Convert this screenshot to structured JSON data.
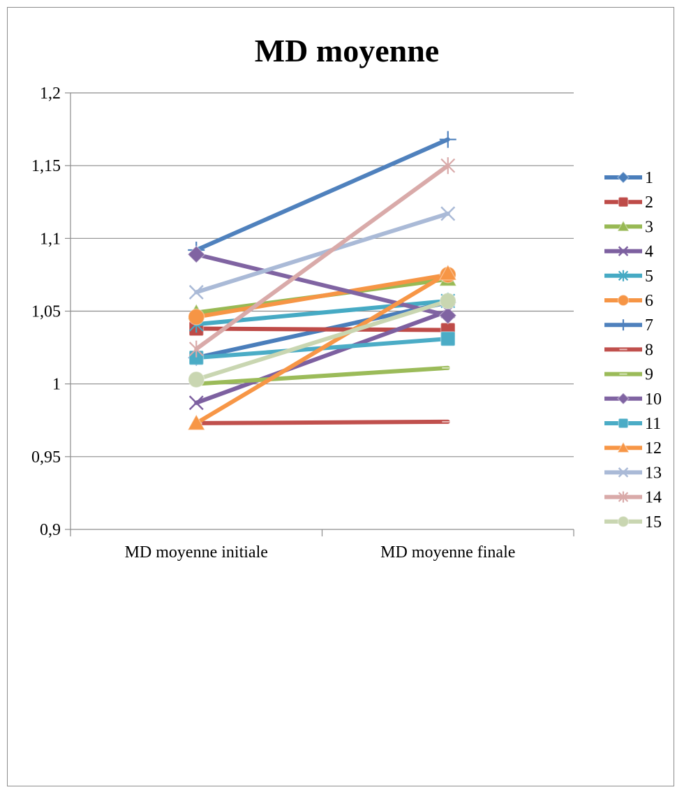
{
  "chart_data": {
    "type": "line",
    "title": "MD moyenne",
    "xlabel": "",
    "ylabel": "",
    "categories": [
      "MD moyenne initiale",
      "MD moyenne finale"
    ],
    "ylim": [
      0.9,
      1.2
    ],
    "yticks": [
      0.9,
      0.95,
      1.0,
      1.05,
      1.1,
      1.15,
      1.2
    ],
    "ytick_labels": [
      "0,9",
      "0,95",
      "1",
      "1,05",
      "1,1",
      "1,15",
      "1,2"
    ],
    "grid": true,
    "legend_position": "right",
    "series": [
      {
        "name": "1",
        "values": [
          1.018,
          1.056
        ],
        "color": "#4a7ebb",
        "marker": "diamond"
      },
      {
        "name": "2",
        "values": [
          1.038,
          1.037
        ],
        "color": "#be4b48",
        "marker": "square"
      },
      {
        "name": "3",
        "values": [
          1.049,
          1.072
        ],
        "color": "#98b954",
        "marker": "triangle"
      },
      {
        "name": "4",
        "values": [
          0.987,
          1.05
        ],
        "color": "#7d60a0",
        "marker": "x"
      },
      {
        "name": "5",
        "values": [
          1.041,
          1.057
        ],
        "color": "#46aac4",
        "marker": "star"
      },
      {
        "name": "6",
        "values": [
          1.046,
          1.075
        ],
        "color": "#f69545",
        "marker": "circle"
      },
      {
        "name": "7",
        "values": [
          1.092,
          1.168
        ],
        "color": "#4f81bd",
        "marker": "plus"
      },
      {
        "name": "8",
        "values": [
          0.973,
          0.974
        ],
        "color": "#c0504d",
        "marker": "dash"
      },
      {
        "name": "9",
        "values": [
          1.0,
          1.011
        ],
        "color": "#9bbb59",
        "marker": "dash"
      },
      {
        "name": "10",
        "values": [
          1.089,
          1.047
        ],
        "color": "#8064a2",
        "marker": "diamond"
      },
      {
        "name": "11",
        "values": [
          1.018,
          1.031
        ],
        "color": "#4bacc6",
        "marker": "square"
      },
      {
        "name": "12",
        "values": [
          0.973,
          1.076
        ],
        "color": "#f79646",
        "marker": "triangle"
      },
      {
        "name": "13",
        "values": [
          1.063,
          1.117
        ],
        "color": "#aabad7",
        "marker": "x"
      },
      {
        "name": "14",
        "values": [
          1.024,
          1.15
        ],
        "color": "#d9aaa9",
        "marker": "star"
      },
      {
        "name": "15",
        "values": [
          1.003,
          1.057
        ],
        "color": "#c9d6b1",
        "marker": "circle"
      }
    ]
  }
}
